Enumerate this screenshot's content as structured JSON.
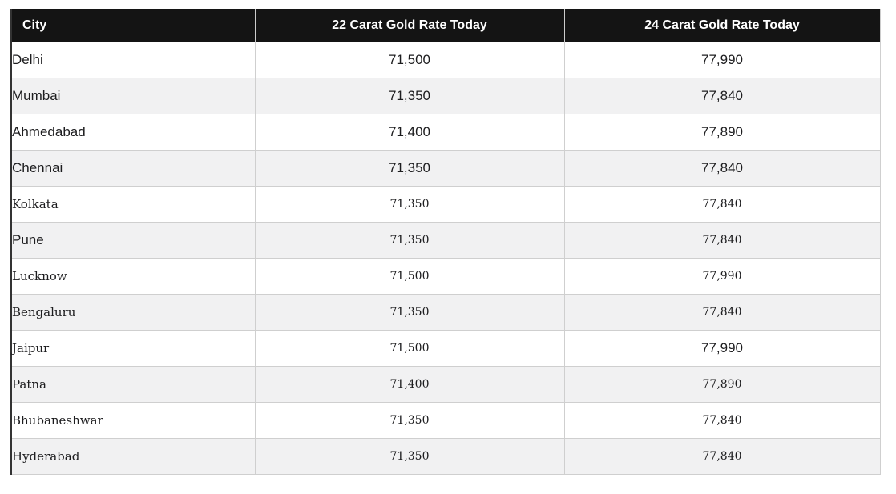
{
  "table": {
    "columns": [
      {
        "label": "City"
      },
      {
        "label": "22 Carat Gold Rate Today"
      },
      {
        "label": "24 Carat Gold Rate Today"
      }
    ],
    "rows": [
      {
        "city": "Delhi",
        "rate_22": "71,500",
        "rate_24": "77,990"
      },
      {
        "city": "Mumbai",
        "rate_22": "71,350",
        "rate_24": "77,840"
      },
      {
        "city": "Ahmedabad",
        "rate_22": "71,400",
        "rate_24": "77,890"
      },
      {
        "city": "Chennai",
        "rate_22": "71,350",
        "rate_24": "77,840"
      },
      {
        "city": "Kolkata",
        "rate_22": "71,350",
        "rate_24": "77,840"
      },
      {
        "city": "Pune",
        "rate_22": "71,350",
        "rate_24": "77,840"
      },
      {
        "city": "Lucknow",
        "rate_22": "71,500",
        "rate_24": "77,990"
      },
      {
        "city": "Bengaluru",
        "rate_22": "71,350",
        "rate_24": "77,840"
      },
      {
        "city": "Jaipur",
        "rate_22": "71,500",
        "rate_24": "77,990"
      },
      {
        "city": "Patna",
        "rate_22": "71,400",
        "rate_24": "77,890"
      },
      {
        "city": "Bhubaneshwar",
        "rate_22": "71,350",
        "rate_24": "77,840"
      },
      {
        "city": "Hyderabad",
        "rate_22": "71,350",
        "rate_24": "77,840"
      }
    ]
  },
  "colors": {
    "header_bg": "#141414",
    "header_text": "#ffffff",
    "body_text": "#1d1d1f",
    "zebra_row_bg": "#f1f1f2",
    "row_border": "#cfcfcf",
    "table_left_border": "#333333",
    "page_bg": "#ffffff"
  }
}
